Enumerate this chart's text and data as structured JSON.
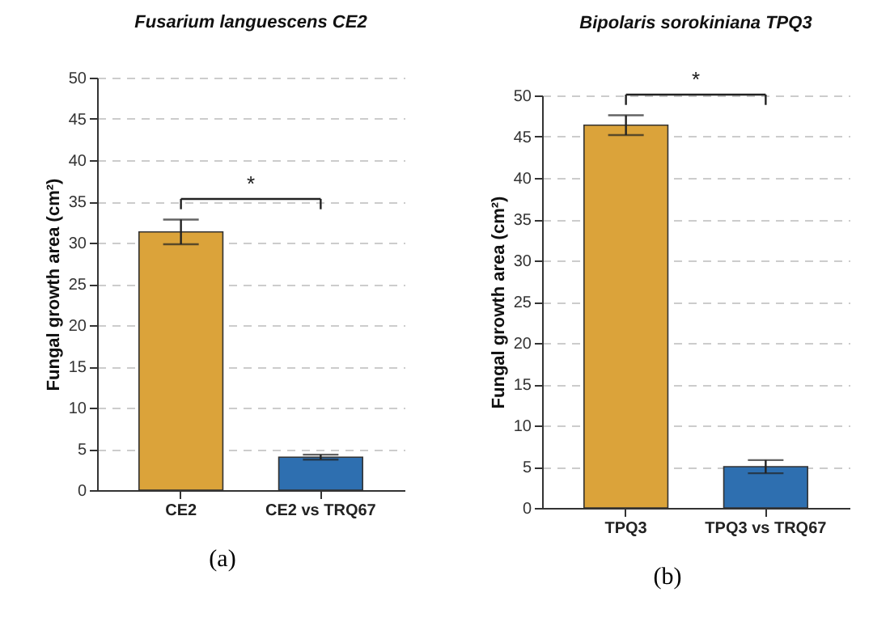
{
  "chart_data": [
    {
      "type": "bar",
      "title": "Fusarium languescens CE2",
      "ylabel": "Fungal growth area (cm²)",
      "categories": [
        "CE2",
        "CE2 vs TRQ67"
      ],
      "values": [
        31.3,
        4.0
      ],
      "colors": [
        "#dba33a",
        "#2e6fb0"
      ],
      "errors": [
        1.5,
        0.3
      ],
      "ylim": [
        0,
        50
      ],
      "yticks": [
        0,
        5,
        10,
        15,
        20,
        25,
        30,
        35,
        40,
        45,
        50
      ],
      "grid": "y",
      "annotations": [
        "*",
        "(a)"
      ]
    },
    {
      "type": "bar",
      "title": "Bipolaris sorokiniana TPQ3",
      "ylabel": "Fungal growth area (cm²)",
      "categories": [
        "TPQ3",
        "TPQ3 vs TRQ67"
      ],
      "values": [
        46.4,
        5.0
      ],
      "colors": [
        "#dba33a",
        "#2e6fb0"
      ],
      "errors": [
        1.2,
        0.8
      ],
      "ylim": [
        0,
        50
      ],
      "yticks": [
        0,
        5,
        10,
        15,
        20,
        25,
        30,
        35,
        40,
        45,
        50
      ],
      "grid": "y",
      "annotations": [
        "*",
        "(b)"
      ]
    }
  ]
}
